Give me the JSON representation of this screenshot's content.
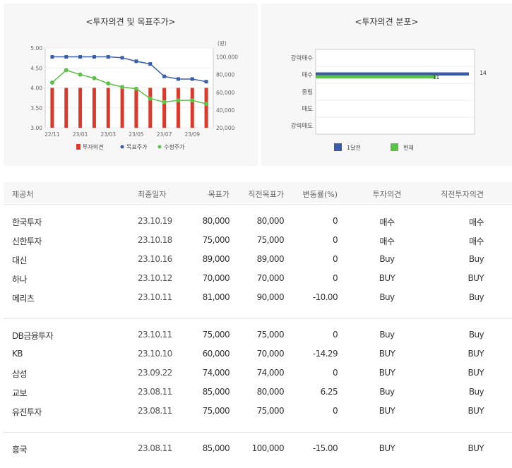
{
  "left_chart": {
    "title": "<투자의견 및 목표주가>",
    "unit": "(원)",
    "legend": [
      "투자의견",
      "목표주가",
      "수정주가"
    ]
  },
  "right_chart": {
    "title": "<투자의견 분포>",
    "legend": [
      "1달전",
      "현재"
    ]
  },
  "chart_data": [
    {
      "type": "bar+line",
      "title": "<투자의견 및 목표주가>",
      "x_tick_labels": [
        "22/11",
        "23/01",
        "23/03",
        "23/05",
        "23/07",
        "23/09"
      ],
      "left_axis": {
        "ticks": [
          "5.00",
          "4.50",
          "4.00",
          "3.50",
          "3.00"
        ],
        "ylim": [
          3.0,
          5.0
        ]
      },
      "right_axis": {
        "unit": "(원)",
        "ticks": [
          "100,000",
          "80,000",
          "60,000",
          "40,000",
          "20,000"
        ],
        "ylim": [
          20000,
          110000
        ]
      },
      "colors": {
        "opinion": "#d83b2b",
        "target": "#3a5ca8",
        "price": "#5cc147"
      },
      "series": [
        {
          "name": "투자의견",
          "axis": "left",
          "style": "bar",
          "values": [
            4,
            4,
            4,
            4,
            4,
            4,
            4,
            4,
            4,
            4,
            4,
            4
          ]
        },
        {
          "name": "목표주가",
          "axis": "right",
          "style": "line",
          "values": [
            100000,
            100000,
            100000,
            100000,
            100000,
            99000,
            95000,
            92000,
            78000,
            75000,
            75000,
            72000
          ]
        },
        {
          "name": "수정주가",
          "axis": "right",
          "style": "line",
          "values": [
            71000,
            85000,
            80000,
            76000,
            70000,
            66000,
            64000,
            53000,
            49000,
            51000,
            51000,
            47000
          ]
        }
      ]
    },
    {
      "type": "bar",
      "orientation": "horizontal",
      "title": "<투자의견 분포>",
      "categories": [
        "강력매수",
        "매수",
        "중립",
        "매도",
        "강력매도"
      ],
      "colors": {
        "1달전": "#3a5ca8",
        "현재": "#5cc147"
      },
      "series": [
        {
          "name": "1달전",
          "values": [
            0,
            14,
            0,
            0,
            0
          ]
        },
        {
          "name": "현재",
          "values": [
            0,
            11,
            0,
            0,
            0
          ]
        }
      ],
      "xlim": [
        0,
        14
      ]
    }
  ],
  "table": {
    "headers": [
      "제공처",
      "최종일자",
      "목표가",
      "직전목표가",
      "변동률(%)",
      "투자의견",
      "직전투자의견"
    ],
    "groups": [
      [
        [
          "한국투자",
          "23.10.19",
          "80,000",
          "80,000",
          "0",
          "매수",
          "매수"
        ],
        [
          "신한투자",
          "23.10.18",
          "75,000",
          "75,000",
          "0",
          "매수",
          "매수"
        ],
        [
          "대신",
          "23.10.16",
          "89,000",
          "89,000",
          "0",
          "Buy",
          "Buy"
        ],
        [
          "하나",
          "23.10.12",
          "70,000",
          "70,000",
          "0",
          "BUY",
          "BUY"
        ],
        [
          "메리츠",
          "23.10.11",
          "81,000",
          "90,000",
          "-10.00",
          "Buy",
          "Buy"
        ]
      ],
      [
        [
          "DB금융투자",
          "23.10.11",
          "75,000",
          "75,000",
          "0",
          "Buy",
          "Buy"
        ],
        [
          "KB",
          "23.10.10",
          "60,000",
          "70,000",
          "-14.29",
          "BUY",
          "BUY"
        ],
        [
          "삼성",
          "23.09.22",
          "74,000",
          "74,000",
          "0",
          "BUY",
          "BUY"
        ],
        [
          "교보",
          "23.08.11",
          "85,000",
          "80,000",
          "6.25",
          "Buy",
          "Buy"
        ],
        [
          "유진투자",
          "23.08.11",
          "75,000",
          "75,000",
          "0",
          "BUY",
          "BUY"
        ]
      ],
      [
        [
          "흥국",
          "23.08.11",
          "85,000",
          "100,000",
          "-15.00",
          "BUY",
          "BUY"
        ]
      ]
    ]
  }
}
